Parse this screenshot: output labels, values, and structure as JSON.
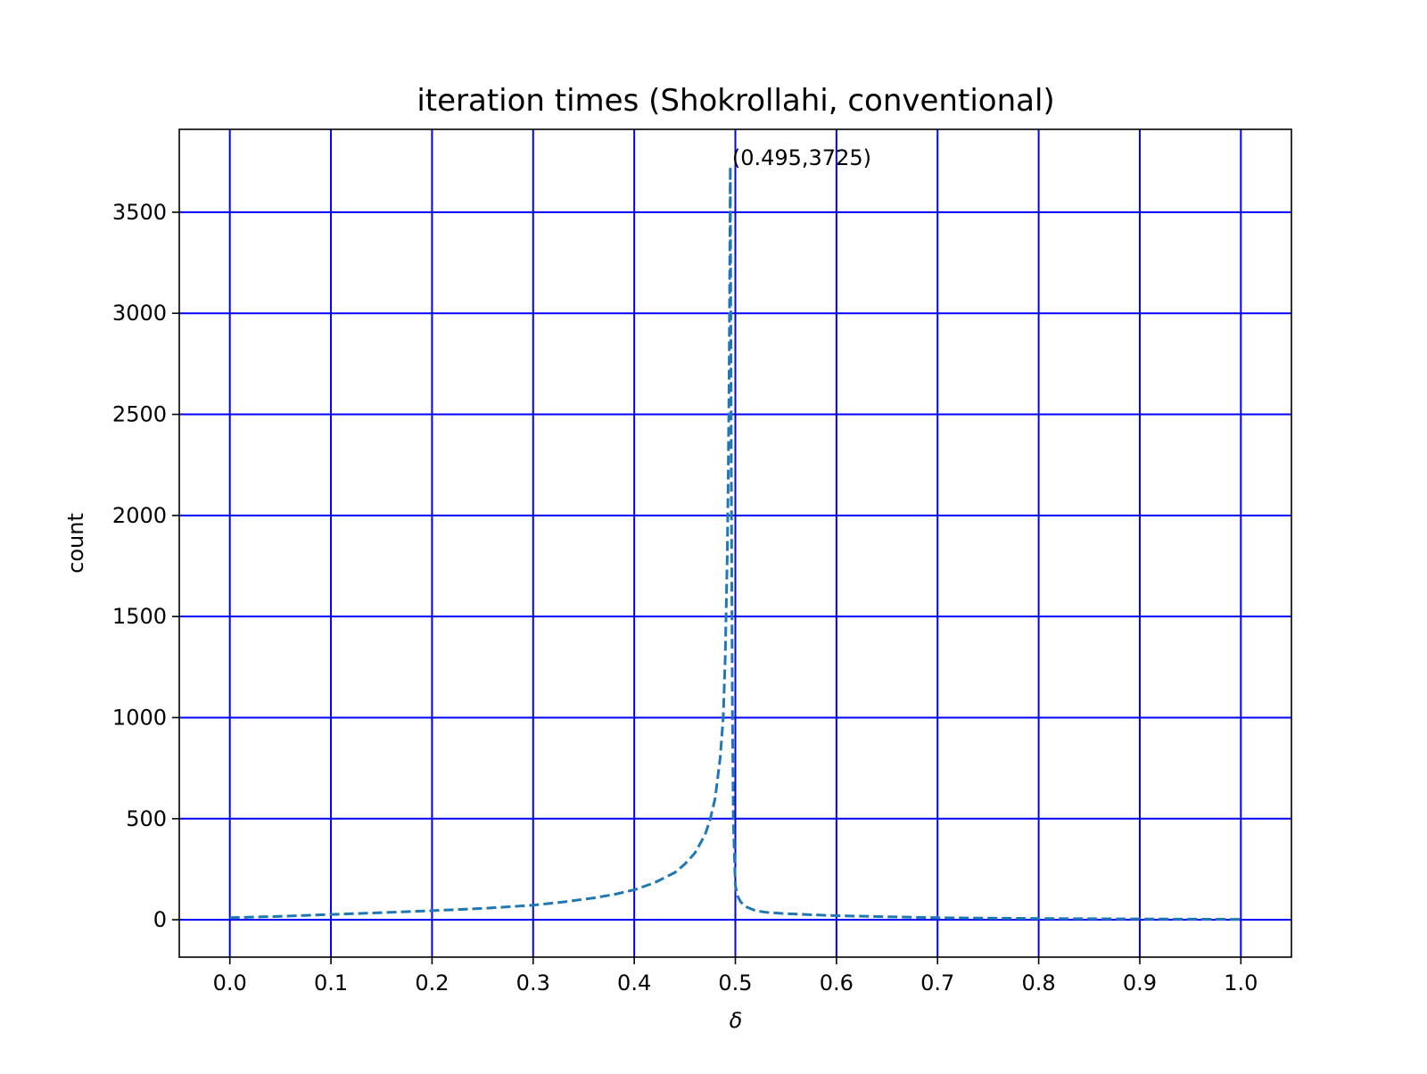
{
  "chart_data": {
    "type": "line",
    "title": "iteration times (Shokrollahi, conventional)",
    "xlabel": "δ",
    "ylabel": "count",
    "xlim": [
      -0.05,
      1.05
    ],
    "ylim": [
      -185,
      3910
    ],
    "grid": true,
    "grid_color": "#0000ff",
    "x_ticks": [
      0.0,
      0.1,
      0.2,
      0.3,
      0.4,
      0.5,
      0.6,
      0.7,
      0.8,
      0.9,
      1.0
    ],
    "x_tick_labels": [
      "0.0",
      "0.1",
      "0.2",
      "0.3",
      "0.4",
      "0.5",
      "0.6",
      "0.7",
      "0.8",
      "0.9",
      "1.0"
    ],
    "y_ticks": [
      0,
      500,
      1000,
      1500,
      2000,
      2500,
      3000,
      3500
    ],
    "y_tick_labels": [
      "0",
      "500",
      "1000",
      "1500",
      "2000",
      "2500",
      "3000",
      "3500"
    ],
    "series": [
      {
        "color": "#1f77b4",
        "line_style": "dashed",
        "x": [
          0.0,
          0.05,
          0.1,
          0.15,
          0.2,
          0.25,
          0.3,
          0.33,
          0.36,
          0.38,
          0.4,
          0.42,
          0.44,
          0.45,
          0.46,
          0.47,
          0.475,
          0.48,
          0.485,
          0.488,
          0.49,
          0.492,
          0.493,
          0.494,
          0.495,
          0.496,
          0.497,
          0.498,
          0.5,
          0.502,
          0.505,
          0.51,
          0.52,
          0.53,
          0.55,
          0.6,
          0.65,
          0.7,
          0.8,
          0.9,
          1.0
        ],
        "y": [
          10,
          17,
          26,
          35,
          45,
          56,
          72,
          88,
          108,
          125,
          148,
          183,
          233,
          275,
          330,
          420,
          495,
          600,
          800,
          1000,
          1300,
          1800,
          2200,
          2800,
          3725,
          2200,
          1100,
          500,
          170,
          120,
          90,
          65,
          45,
          37,
          30,
          20,
          15,
          10,
          6,
          4,
          2
        ]
      }
    ],
    "annotations": [
      {
        "text": "(0.495,3725)",
        "x": 0.495,
        "y": 3725
      }
    ]
  }
}
